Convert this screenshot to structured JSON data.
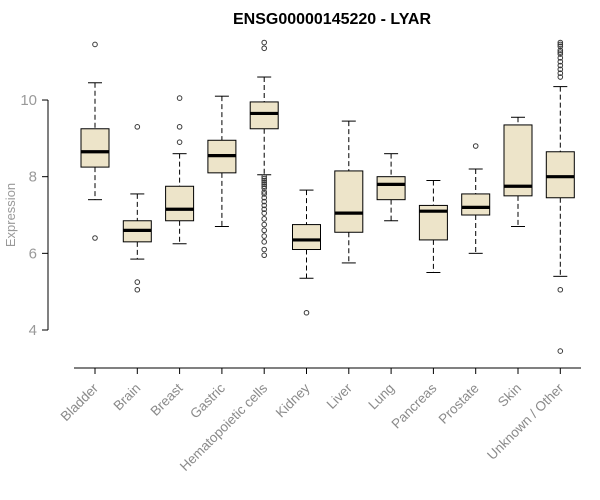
{
  "title": "ENSG00000145220 - LYAR",
  "colors": {
    "box_fill": "#ede4c9",
    "box_stroke": "#000000",
    "median_stroke": "#000000",
    "outlier_stroke": "#3a3a3a",
    "axis_line": "#000000",
    "tick_text": "#999999",
    "category_text": "#8a8a8a",
    "title_text": "#000000"
  },
  "chart_data": {
    "type": "boxplot",
    "title": "ENSG00000145220 - LYAR",
    "xlabel": "",
    "ylabel": "Expression",
    "yticks": [
      4,
      6,
      8,
      10
    ],
    "ylim": [
      3.2,
      11.7
    ],
    "grid": false,
    "legend": "none",
    "categories": [
      "Bladder",
      "Brain",
      "Breast",
      "Gastric",
      "Hematopoietic cells",
      "Kidney",
      "Liver",
      "Lung",
      "Pancreas",
      "Prostate",
      "Skin",
      "Unknown / Other"
    ],
    "series": [
      {
        "name": "Bladder",
        "whislo": 7.4,
        "q1": 8.25,
        "med": 8.65,
        "q3": 9.25,
        "whishi": 10.45,
        "outliers": [
          11.45,
          6.4
        ]
      },
      {
        "name": "Brain",
        "whislo": 5.85,
        "q1": 6.3,
        "med": 6.6,
        "q3": 6.85,
        "whishi": 7.55,
        "outliers": [
          9.3,
          5.25,
          5.05
        ]
      },
      {
        "name": "Breast",
        "whislo": 6.25,
        "q1": 6.85,
        "med": 7.15,
        "q3": 7.75,
        "whishi": 8.6,
        "outliers": [
          10.05,
          9.3,
          8.9
        ]
      },
      {
        "name": "Gastric",
        "whislo": 6.7,
        "q1": 8.1,
        "med": 8.55,
        "q3": 8.95,
        "whishi": 10.1,
        "outliers": []
      },
      {
        "name": "Hematopoietic cells",
        "whislo": 8.05,
        "q1": 9.25,
        "med": 9.65,
        "q3": 9.95,
        "whishi": 10.6,
        "outliers": [
          11.5,
          11.35,
          8.0,
          7.95,
          7.9,
          7.85,
          7.8,
          7.75,
          7.7,
          7.6,
          7.55,
          7.45,
          7.35,
          7.25,
          7.15,
          7.05,
          6.9,
          6.75,
          6.6,
          6.45,
          6.3,
          6.1,
          5.95
        ]
      },
      {
        "name": "Kidney",
        "whislo": 5.35,
        "q1": 6.1,
        "med": 6.35,
        "q3": 6.75,
        "whishi": 7.65,
        "outliers": [
          4.45
        ]
      },
      {
        "name": "Liver",
        "whislo": 5.75,
        "q1": 6.55,
        "med": 7.05,
        "q3": 8.15,
        "whishi": 9.45,
        "outliers": []
      },
      {
        "name": "Lung",
        "whislo": 6.85,
        "q1": 7.4,
        "med": 7.8,
        "q3": 8.0,
        "whishi": 8.6,
        "outliers": []
      },
      {
        "name": "Pancreas",
        "whislo": 5.5,
        "q1": 6.35,
        "med": 7.1,
        "q3": 7.25,
        "whishi": 7.9,
        "outliers": []
      },
      {
        "name": "Prostate",
        "whislo": 6.0,
        "q1": 7.0,
        "med": 7.2,
        "q3": 7.55,
        "whishi": 8.2,
        "outliers": [
          8.8
        ]
      },
      {
        "name": "Skin",
        "whislo": 6.7,
        "q1": 7.5,
        "med": 7.75,
        "q3": 9.35,
        "whishi": 9.55,
        "outliers": []
      },
      {
        "name": "Unknown / Other",
        "whislo": 5.4,
        "q1": 7.45,
        "med": 8.0,
        "q3": 8.65,
        "whishi": 10.35,
        "outliers": [
          11.5,
          11.45,
          11.4,
          11.3,
          11.25,
          11.2,
          11.1,
          11.0,
          10.9,
          10.8,
          10.7,
          10.6,
          5.05,
          3.45
        ]
      }
    ]
  }
}
